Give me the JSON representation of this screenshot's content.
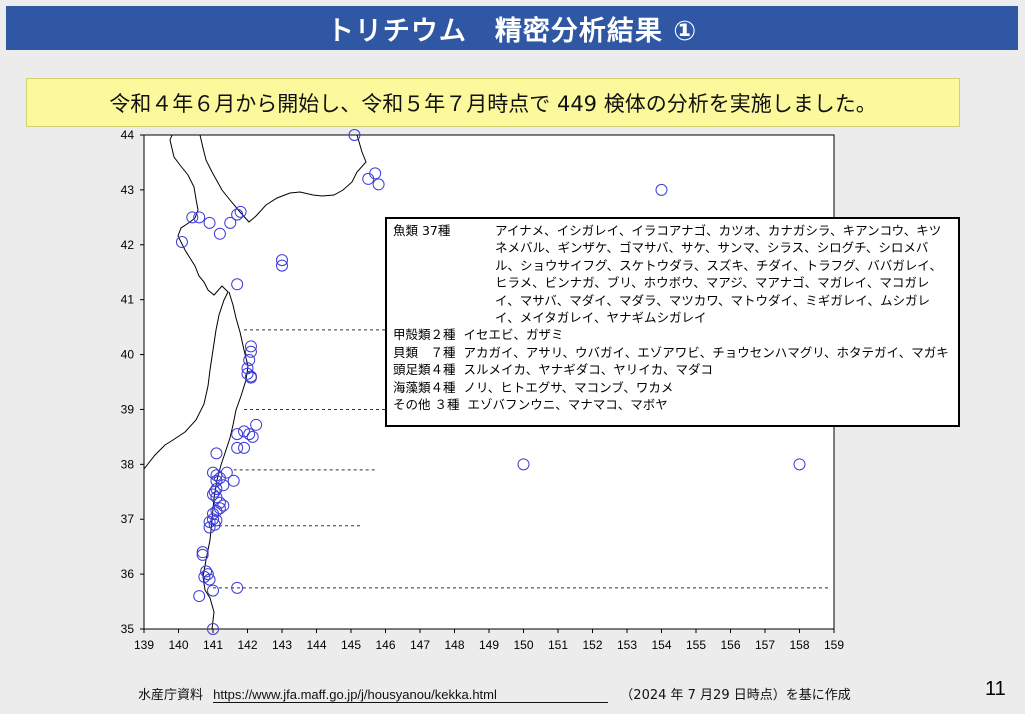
{
  "title": "トリチウム　精密分析結果 ①",
  "banner": "令和４年６月から開始し、令和５年７月時点で 449 検体の分析を実施しました。",
  "legend": [
    {
      "head": "魚類  37種",
      "body": "アイナメ、イシガレイ、イラコアナゴ、カツオ、カナガシラ、キアンコウ、キツネメバル、ギンザケ、ゴマサバ、サケ、サンマ、シラス、シログチ、シロメバル、ショウサイフグ、スケトウダラ、スズキ、チダイ、トラフグ、ババガレイ、ヒラメ、ビンナガ、ブリ、ホウボウ、マアジ、マアナゴ、マガレイ、マコガレイ、マサバ、マダイ、マダラ、マツカワ、マトウダイ、ミギガレイ、ムシガレイ、メイタガレイ、ヤナギムシガレイ"
    },
    {
      "head": "甲殻類２種",
      "body": "イセエビ、ガザミ"
    },
    {
      "head": "貝類　７種",
      "body": "アカガイ、アサリ、ウバガイ、エゾアワビ、チョウセンハマグリ、ホタテガイ、マガキ"
    },
    {
      "head": "頭足類４種",
      "body": "スルメイカ、ヤナギダコ、ヤリイカ、マダコ"
    },
    {
      "head": "海藻類４種",
      "body": "ノリ、ヒトエグサ、マコンブ、ワカメ"
    },
    {
      "head": "その他  ３種",
      "body": "エゾバフンウニ、マナマコ、マボヤ"
    }
  ],
  "footer": {
    "source": "水産庁資料",
    "url": "https://www.jfa.maff.go.jp/j/housyanou/kekka.html",
    "note": "（2024 年 7 月29 日時点）を基に作成"
  },
  "page_number": "11",
  "colors": {
    "title_bg": "#2f57a4",
    "banner_bg": "#fbf99b",
    "marker": "#3b3bd9"
  },
  "chart_data": {
    "type": "scatter",
    "xlim": [
      139,
      159
    ],
    "ylim": [
      35,
      44
    ],
    "x_ticks": [
      139,
      140,
      141,
      142,
      143,
      144,
      145,
      146,
      147,
      148,
      149,
      150,
      151,
      152,
      153,
      154,
      155,
      156,
      157,
      158,
      159
    ],
    "y_ticks": [
      35,
      36,
      37,
      38,
      39,
      40,
      41,
      42,
      43,
      44
    ],
    "points": [
      [
        145.1,
        44.0
      ],
      [
        145.7,
        43.3
      ],
      [
        145.8,
        43.1
      ],
      [
        145.5,
        43.2
      ],
      [
        154.0,
        43.0
      ],
      [
        150.0,
        38.0
      ],
      [
        158.0,
        38.0
      ],
      [
        140.1,
        42.05
      ],
      [
        140.4,
        42.5
      ],
      [
        140.6,
        42.5
      ],
      [
        140.9,
        42.4
      ],
      [
        141.2,
        42.2
      ],
      [
        141.5,
        42.4
      ],
      [
        141.7,
        42.55
      ],
      [
        141.8,
        42.6
      ],
      [
        143.0,
        41.72
      ],
      [
        143.0,
        41.62
      ],
      [
        141.7,
        41.28
      ],
      [
        142.1,
        40.15
      ],
      [
        142.1,
        40.05
      ],
      [
        142.05,
        39.9
      ],
      [
        142.0,
        39.75
      ],
      [
        142.1,
        39.6
      ],
      [
        142.0,
        39.65
      ],
      [
        142.1,
        39.58
      ],
      [
        141.9,
        38.6
      ],
      [
        142.05,
        38.55
      ],
      [
        142.15,
        38.5
      ],
      [
        142.25,
        38.72
      ],
      [
        141.7,
        38.55
      ],
      [
        141.7,
        38.3
      ],
      [
        141.9,
        38.3
      ],
      [
        141.1,
        38.2
      ],
      [
        141.0,
        37.85
      ],
      [
        141.1,
        37.8
      ],
      [
        141.4,
        37.85
      ],
      [
        141.2,
        37.75
      ],
      [
        141.6,
        37.7
      ],
      [
        141.1,
        37.7
      ],
      [
        141.3,
        37.62
      ],
      [
        141.1,
        37.55
      ],
      [
        141.05,
        37.5
      ],
      [
        141.0,
        37.45
      ],
      [
        141.1,
        37.4
      ],
      [
        141.2,
        37.3
      ],
      [
        141.3,
        37.25
      ],
      [
        141.2,
        37.2
      ],
      [
        141.1,
        37.15
      ],
      [
        141.0,
        37.1
      ],
      [
        141.0,
        37.0
      ],
      [
        141.1,
        36.98
      ],
      [
        140.9,
        36.95
      ],
      [
        141.05,
        36.9
      ],
      [
        140.9,
        36.85
      ],
      [
        140.7,
        36.4
      ],
      [
        140.7,
        36.35
      ],
      [
        140.8,
        36.05
      ],
      [
        140.85,
        36.0
      ],
      [
        140.75,
        35.95
      ],
      [
        140.9,
        35.9
      ],
      [
        140.6,
        35.6
      ],
      [
        141.0,
        35.7
      ],
      [
        141.7,
        35.75
      ],
      [
        141.0,
        35.0
      ]
    ],
    "reference_lines": [
      {
        "y": 40.45,
        "x_from": 141.9,
        "x_to": 146.5
      },
      {
        "y": 39.0,
        "x_from": 141.9,
        "x_to": 146.5
      },
      {
        "y": 37.9,
        "x_from": 141.6,
        "x_to": 145.7
      },
      {
        "y": 36.88,
        "x_from": 141.0,
        "x_to": 145.3
      },
      {
        "y": 35.75,
        "x_from": 141.0,
        "x_to": 158.9
      }
    ]
  }
}
